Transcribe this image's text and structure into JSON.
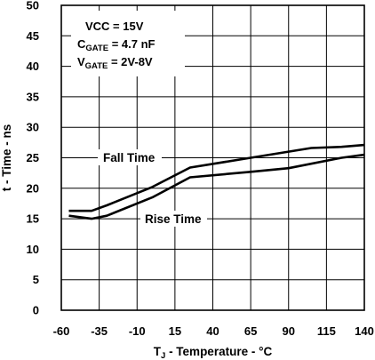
{
  "chart_data": {
    "type": "line",
    "xlabel": {
      "prefix": "T",
      "subscript": "J",
      "suffix": " - Temperature - °C"
    },
    "ylabel": "t - Time - ns",
    "xlim": [
      -60,
      140
    ],
    "ylim": [
      0,
      50
    ],
    "xticks": [
      -60,
      -35,
      -10,
      15,
      40,
      65,
      90,
      115,
      140
    ],
    "yticks": [
      0,
      5,
      10,
      15,
      20,
      25,
      30,
      35,
      40,
      45,
      50
    ],
    "grid": true,
    "conditions": [
      {
        "main": "VCC = 15V",
        "sub": "",
        "rest": ""
      },
      {
        "main": "C",
        "sub": "GATE",
        "rest": " = 4.7 nF"
      },
      {
        "main": "V",
        "sub": "GATE",
        "rest": " = 2V-8V"
      }
    ],
    "series": [
      {
        "name": "Fall Time",
        "x": [
          -55,
          -40,
          -30,
          0,
          25,
          65,
          105,
          125,
          140
        ],
        "y": [
          16.3,
          16.3,
          17.2,
          20.2,
          23.4,
          25.0,
          26.6,
          26.8,
          27.1
        ]
      },
      {
        "name": "Rise Time",
        "x": [
          -55,
          -40,
          -30,
          0,
          25,
          65,
          90,
          125,
          140
        ],
        "y": [
          15.5,
          15.0,
          15.5,
          18.5,
          21.8,
          22.7,
          23.3,
          25.0,
          25.5
        ]
      }
    ]
  }
}
